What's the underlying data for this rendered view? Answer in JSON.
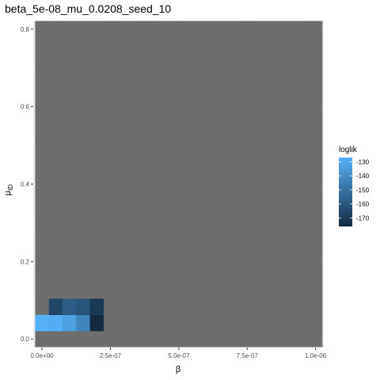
{
  "chart_data": {
    "type": "heatmap",
    "title": "beta_5e-08_mu_0.0208_seed_10",
    "xlabel": "β",
    "ylabel": "μ",
    "ylabel_subscript": "ID",
    "xlim": [
      -3.2e-08,
      1.03e-06
    ],
    "ylim": [
      -0.022,
      0.822
    ],
    "x_ticks": [
      0,
      2.5e-07,
      5e-07,
      7.5e-07,
      1e-06
    ],
    "x_tick_labels": [
      "0.0e+00",
      "2.5e-07",
      "5.0e-07",
      "7.5e-07",
      "1.0e-06"
    ],
    "y_ticks": [
      0.0,
      0.2,
      0.4,
      0.6,
      0.8
    ],
    "y_tick_labels": [
      "0.0",
      "0.2",
      "0.4",
      "0.6",
      "0.8"
    ],
    "tile_width": 5e-08,
    "tile_height": 0.0416,
    "na_fill": "#6e6e6e",
    "panel_background": "#ebebeb",
    "grid": true,
    "legend": {
      "title": "loglik",
      "position": "right",
      "range": [
        -176,
        -127
      ],
      "breaks": [
        -130,
        -140,
        -150,
        -160,
        -170
      ],
      "break_labels": [
        "-130",
        "-140",
        "-150",
        "-160",
        "-170"
      ],
      "low_color": "#132b43",
      "high_color": "#56b1f7"
    },
    "tiles": [
      {
        "x": 0.0,
        "y": 0.0416,
        "value": -127
      },
      {
        "x": 5e-08,
        "y": 0.0416,
        "value": -128
      },
      {
        "x": 1e-07,
        "y": 0.0416,
        "value": -133
      },
      {
        "x": 1.5e-07,
        "y": 0.0416,
        "value": -143
      },
      {
        "x": 2e-07,
        "y": 0.0416,
        "value": -176
      },
      {
        "x": 5e-08,
        "y": 0.0832,
        "value": -166
      },
      {
        "x": 1e-07,
        "y": 0.0832,
        "value": -158
      },
      {
        "x": 1.5e-07,
        "y": 0.0832,
        "value": -161
      },
      {
        "x": 2e-07,
        "y": 0.0832,
        "value": -171
      }
    ]
  }
}
